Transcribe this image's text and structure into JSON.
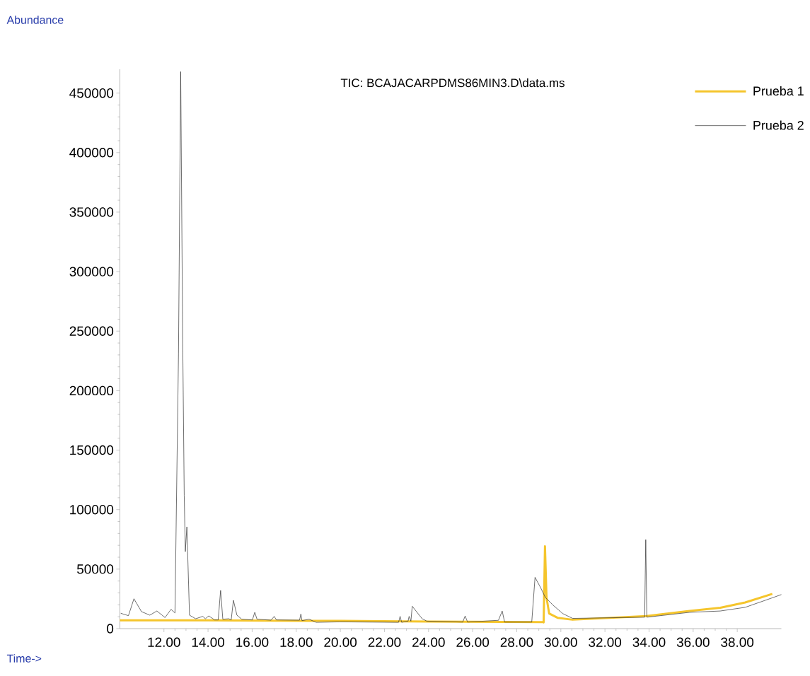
{
  "chart_data": {
    "type": "line",
    "title": "TIC: BCAJACARPDMS86MIN3.D\\data.ms",
    "xlabel": "Time->",
    "ylabel": "Abundance",
    "xlim": [
      10,
      40
    ],
    "ylim": [
      0,
      470000
    ],
    "xticks": [
      {
        "value": 12,
        "label": "12.00"
      },
      {
        "value": 14,
        "label": "14.00"
      },
      {
        "value": 16,
        "label": "16.00"
      },
      {
        "value": 18,
        "label": "18.00"
      },
      {
        "value": 20,
        "label": "20.00"
      },
      {
        "value": 22,
        "label": "22.00"
      },
      {
        "value": 24,
        "label": "24.00"
      },
      {
        "value": 26,
        "label": "26.00"
      },
      {
        "value": 28,
        "label": "28.00"
      },
      {
        "value": 30,
        "label": "30.00"
      },
      {
        "value": 32,
        "label": "32.00"
      },
      {
        "value": 34,
        "label": "34.00"
      },
      {
        "value": 36,
        "label": "36.00"
      },
      {
        "value": 38,
        "label": "38.00"
      }
    ],
    "yticks": [
      0,
      50000,
      100000,
      150000,
      200000,
      250000,
      300000,
      350000,
      400000,
      450000
    ],
    "legend": "top right",
    "marker": "none",
    "line_style": "solid",
    "series": [
      {
        "name": "Prueba 1",
        "color": "#f5c52c",
        "x": [
          10.0,
          14.0,
          18.0,
          20.0,
          24.0,
          29.2,
          29.22,
          29.28,
          29.35,
          29.47,
          29.85,
          30.53,
          33.88,
          35.84,
          37.23,
          38.36,
          39.59
        ],
        "values": [
          7000,
          7000,
          6500,
          6500,
          6000,
          5500,
          5300,
          69200,
          26100,
          12700,
          9100,
          7500,
          10600,
          14800,
          17500,
          22000,
          29200
        ]
      },
      {
        "name": "Prueba 2",
        "color": "#303030",
        "x": [
          10.04,
          10.39,
          10.64,
          10.98,
          11.36,
          11.68,
          12.05,
          12.32,
          12.5,
          12.66,
          12.76,
          12.85,
          12.92,
          12.97,
          13.04,
          13.16,
          13.44,
          13.76,
          13.88,
          14.03,
          14.3,
          14.46,
          14.57,
          14.67,
          14.94,
          15.05,
          15.15,
          15.31,
          15.53,
          16.01,
          16.12,
          16.22,
          16.86,
          17.0,
          17.1,
          18.15,
          18.21,
          18.26,
          18.58,
          18.9,
          19.97,
          22.64,
          22.71,
          22.78,
          23.07,
          23.12,
          23.2,
          23.26,
          23.71,
          23.92,
          25.55,
          25.66,
          25.77,
          27.17,
          27.34,
          27.45,
          28.68,
          28.83,
          29.08,
          29.3,
          29.63,
          30.08,
          30.53,
          33.8,
          33.85,
          33.9,
          35.84,
          37.23,
          38.36,
          39.47,
          40.0
        ],
        "values": [
          12900,
          10900,
          25100,
          14300,
          11300,
          14800,
          9300,
          16200,
          13200,
          231000,
          468000,
          243000,
          112000,
          64700,
          85500,
          11300,
          8300,
          10300,
          8300,
          10700,
          7300,
          7300,
          32100,
          7900,
          8300,
          7300,
          23800,
          11300,
          7900,
          7300,
          13700,
          7900,
          7100,
          10300,
          7300,
          7100,
          12300,
          6700,
          7900,
          5300,
          5700,
          5300,
          10300,
          5300,
          6300,
          10300,
          6300,
          18800,
          8300,
          6300,
          5500,
          10600,
          5500,
          7000,
          14800,
          5500,
          5500,
          43100,
          34500,
          26100,
          20000,
          12700,
          8600,
          9600,
          74800,
          9600,
          13700,
          14800,
          17900,
          25100,
          28600
        ]
      }
    ]
  }
}
